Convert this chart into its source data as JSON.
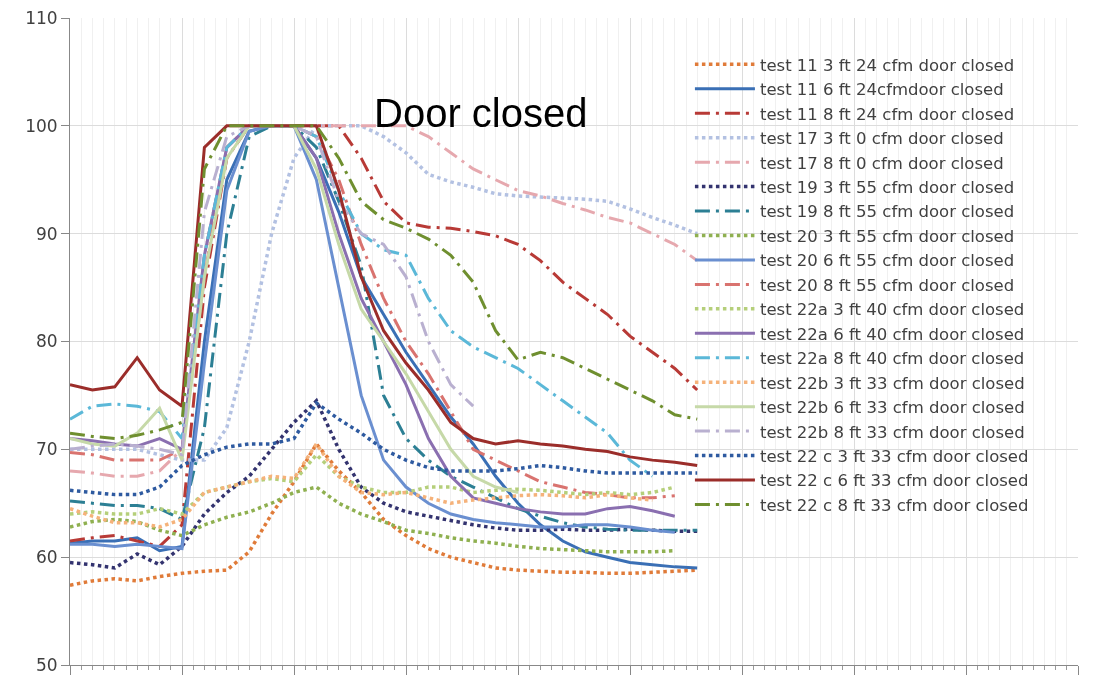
{
  "chart_data": {
    "type": "line",
    "annotations": [
      "Door closed"
    ],
    "categories": [
      null,
      null,
      null,
      null,
      null,
      null,
      null,
      null,
      null,
      null,
      null,
      null,
      null,
      null,
      null,
      null,
      null,
      null,
      null,
      null,
      null,
      null,
      null,
      null,
      null,
      null,
      null,
      null,
      null,
      null,
      null,
      null,
      null,
      null,
      null,
      null,
      null,
      null,
      null,
      null,
      null,
      null,
      null,
      null,
      null,
      null
    ],
    "ylim": [
      50,
      110
    ],
    "yticks": [
      50,
      60,
      70,
      80,
      90,
      100,
      110
    ],
    "grid": true,
    "legend": "top right",
    "marker": "none",
    "series": [
      {
        "name": "test 11 3 ft 24 cfm door closed",
        "color": "#e07b39",
        "line_style": "dotted",
        "values": [
          57.4,
          57.8,
          58,
          57.8,
          58.2,
          58.5,
          58.7,
          58.8,
          60.5,
          64,
          67,
          70.5,
          68,
          66,
          63.5,
          62,
          60.8,
          60,
          59.5,
          59,
          58.8,
          58.7,
          58.6,
          58.6,
          58.5,
          58.5,
          58.6,
          58.7,
          58.8,
          null,
          null,
          null,
          null,
          null,
          null,
          null,
          null,
          null,
          null,
          null,
          null,
          null,
          null,
          null,
          null,
          null
        ]
      },
      {
        "name": "test 11 6 ft 24cfmdoor closed",
        "color": "#3a6fb5",
        "line_style": "solid",
        "values": [
          61.3,
          61.5,
          61.5,
          61.8,
          60.6,
          61,
          80,
          95,
          99.5,
          100,
          100,
          97,
          92,
          86,
          82.5,
          79,
          76,
          73,
          70.5,
          67.5,
          65,
          63,
          61.5,
          60.5,
          60,
          59.5,
          59.3,
          59.1,
          59,
          null,
          null,
          null,
          null,
          null,
          null,
          null,
          null,
          null,
          null,
          null,
          null,
          null,
          null,
          null,
          null,
          null
        ]
      },
      {
        "name": "test 11 8 ft 24 cfm door closed",
        "color": "#b83a36",
        "line_style": "dashdot",
        "values": [
          61.5,
          61.8,
          62,
          61.5,
          61,
          63,
          85,
          97,
          100,
          100,
          100,
          100,
          100,
          97,
          93,
          91,
          90.6,
          90.5,
          90.2,
          89.8,
          89,
          87.5,
          85.5,
          84,
          82.5,
          80.5,
          79,
          77.5,
          75.5,
          null,
          null,
          null,
          null,
          null,
          null,
          null,
          null,
          null,
          null,
          null,
          null,
          null,
          null,
          null,
          null,
          null
        ]
      },
      {
        "name": "test 17 3 ft 0 cfm door closed",
        "color": "#b3c1e2",
        "line_style": "dotted",
        "values": [
          70,
          70,
          70,
          70,
          69.5,
          69,
          69,
          72,
          80,
          90,
          97,
          100,
          100,
          100,
          99,
          97.5,
          95.5,
          94.8,
          94.3,
          93.7,
          93.5,
          93.4,
          93.3,
          93.2,
          93,
          92.3,
          91.5,
          90.8,
          90,
          null,
          null,
          null,
          null,
          null,
          null,
          null,
          null,
          null,
          null,
          null,
          null,
          null,
          null,
          null,
          null,
          null
        ]
      },
      {
        "name": "test 17 8 ft 0 cfm door closed",
        "color": "#e6a8ae",
        "line_style": "dashdot",
        "values": [
          68,
          67.8,
          67.5,
          67.5,
          68,
          70,
          88,
          98,
          100,
          100,
          100,
          100,
          100,
          100,
          100,
          100,
          99,
          97.5,
          96,
          95,
          94,
          93.5,
          92.8,
          92.2,
          91.5,
          91,
          90,
          89,
          87.5,
          null,
          null,
          null,
          null,
          null,
          null,
          null,
          null,
          null,
          null,
          null,
          null,
          null,
          null,
          null,
          null,
          null
        ]
      },
      {
        "name": "test 19 3 ft 55 cfm door closed",
        "color": "#33336f",
        "line_style": "dotted",
        "values": [
          59.5,
          59.3,
          59,
          60.3,
          59.3,
          61,
          64,
          66,
          67.5,
          70,
          72.5,
          74.5,
          70,
          66.5,
          65,
          64.2,
          63.8,
          63.4,
          63,
          62.7,
          62.5,
          62.5,
          62.6,
          62.5,
          62.5,
          62.6,
          62.5,
          62.4,
          62.4,
          null,
          null,
          null,
          null,
          null,
          null,
          null,
          null,
          null,
          null,
          null,
          null,
          null,
          null,
          null,
          null,
          null
        ]
      },
      {
        "name": "test 19 8 ft 55 cfm door closed",
        "color": "#2c7f94",
        "line_style": "dashdot",
        "values": [
          65.2,
          65,
          64.8,
          64.8,
          64.5,
          63.5,
          72,
          90,
          99,
          100,
          100,
          98,
          93,
          87,
          75,
          71,
          69,
          67.5,
          66.5,
          65.5,
          64.5,
          63.8,
          63.2,
          62.8,
          62.6,
          62.5,
          62.5,
          62.5,
          62.5,
          null,
          null,
          null,
          null,
          null,
          null,
          null,
          null,
          null,
          null,
          null,
          null,
          null,
          null,
          null,
          null,
          null
        ]
      },
      {
        "name": "test 20 3 ft 55 cfm door closed",
        "color": "#8fb050",
        "line_style": "dotted",
        "values": [
          62.8,
          63.3,
          63.5,
          63.3,
          62.5,
          62,
          63,
          63.7,
          64.2,
          65,
          66,
          66.5,
          65,
          64,
          63.3,
          62.5,
          62.2,
          61.8,
          61.5,
          61.3,
          61,
          60.8,
          60.7,
          60.6,
          60.5,
          60.5,
          60.5,
          60.6,
          null,
          null,
          null,
          null,
          null,
          null,
          null,
          null,
          null,
          null,
          null,
          null,
          null,
          null,
          null,
          null,
          null,
          null
        ]
      },
      {
        "name": "test 20 6 ft 55 cfm door closed",
        "color": "#6a8fd0",
        "line_style": "solid",
        "values": [
          61.2,
          61.2,
          61,
          61.2,
          61,
          60.8,
          78,
          94,
          99.5,
          100,
          100,
          95,
          85,
          75,
          69,
          66.5,
          65,
          64,
          63.5,
          63.2,
          63,
          62.8,
          62.8,
          63,
          63,
          62.8,
          62.5,
          62.3,
          null,
          null,
          null,
          null,
          null,
          null,
          null,
          null,
          null,
          null,
          null,
          null,
          null,
          null,
          null,
          null,
          null,
          null
        ]
      },
      {
        "name": "test 20 8 ft 55 cfm door closed",
        "color": "#d9736f",
        "line_style": "dashdot",
        "values": [
          69.7,
          69.5,
          69,
          69,
          69,
          70,
          86,
          98,
          100,
          100,
          100,
          99,
          95,
          89,
          84,
          80,
          77,
          73.5,
          70,
          69,
          68,
          67,
          66.5,
          66,
          65.8,
          65.5,
          65.5,
          65.7,
          null,
          null,
          null,
          null,
          null,
          null,
          null,
          null,
          null,
          null,
          null,
          null,
          null,
          null,
          null,
          null,
          null,
          null
        ]
      },
      {
        "name": "test 22a 3 ft 40 cfm door closed",
        "color": "#b5cf7a",
        "line_style": "dotted",
        "values": [
          64,
          64.2,
          64,
          64,
          64.5,
          64,
          66,
          66.5,
          67,
          67.3,
          67,
          69.5,
          67.5,
          66.5,
          66,
          66,
          66.5,
          66.5,
          66,
          66.2,
          66.3,
          66.2,
          66,
          65.8,
          66,
          65.8,
          66,
          66.5,
          null,
          null,
          null,
          null,
          null,
          null,
          null,
          null,
          null,
          null,
          null,
          null,
          null,
          null,
          null,
          null,
          null,
          null
        ]
      },
      {
        "name": "test 22a 6 ft 40 cfm door closed",
        "color": "#8a6fb0",
        "line_style": "solid",
        "values": [
          71,
          70.8,
          70.5,
          70.3,
          71,
          70,
          88,
          98,
          100,
          100,
          100,
          97,
          90,
          84,
          80,
          76,
          71,
          67.5,
          65.5,
          65,
          64.5,
          64.2,
          64,
          64,
          64.5,
          64.7,
          64.3,
          63.8,
          null,
          null,
          null,
          null,
          null,
          null,
          null,
          null,
          null,
          null,
          null,
          null,
          null,
          null,
          null,
          null,
          null,
          null
        ]
      },
      {
        "name": "test 22a 8 ft 40 cfm door closed",
        "color": "#5bb8d8",
        "line_style": "dashdot",
        "values": [
          72.8,
          74,
          74.2,
          74,
          73.5,
          71,
          88,
          98,
          100,
          100,
          100,
          99,
          94,
          90,
          88.5,
          88,
          84,
          81,
          79.5,
          78.5,
          77.5,
          76,
          74.5,
          73,
          71.5,
          69,
          67.5,
          null,
          null,
          null,
          null,
          null,
          null,
          null,
          null,
          null,
          null,
          null,
          null,
          null,
          null,
          null,
          null,
          null,
          null,
          null
        ]
      },
      {
        "name": "test 22b 3 ft 33 cfm door closed",
        "color": "#f5b27a",
        "line_style": "dotted",
        "values": [
          64.5,
          63.8,
          63.2,
          63.2,
          62.8,
          63.5,
          66,
          66.5,
          67,
          67.5,
          67.3,
          70.5,
          67.5,
          66,
          65.8,
          66,
          65.5,
          65,
          65.3,
          65.5,
          65.7,
          65.8,
          65.7,
          65.5,
          65.8,
          65.5,
          65.3,
          null,
          null,
          null,
          null,
          null,
          null,
          null,
          null,
          null,
          null,
          null,
          null,
          null,
          null,
          null,
          null,
          null,
          null,
          null
        ]
      },
      {
        "name": "test 22b 6 ft 33 cfm door closed",
        "color": "#c6d9a8",
        "line_style": "solid",
        "values": [
          71,
          70.5,
          70.3,
          71.5,
          73.8,
          69,
          86,
          97,
          100,
          100,
          100,
          96,
          89,
          83,
          80,
          77,
          73.5,
          70,
          67.5,
          66.5,
          66,
          null,
          null,
          null,
          null,
          null,
          null,
          null,
          null,
          null,
          null,
          null,
          null,
          null,
          null,
          null,
          null,
          null,
          null,
          null,
          null,
          null,
          null,
          null,
          null,
          null
        ]
      },
      {
        "name": "test 22b 8 ft 33 cfm door closed",
        "color": "#b9b0d0",
        "line_style": "dashdot",
        "values": [
          70,
          70.3,
          70.5,
          70.3,
          70,
          69.5,
          92,
          99,
          100,
          100,
          100,
          99,
          93,
          90,
          89,
          86,
          80,
          76,
          74,
          null,
          null,
          null,
          null,
          null,
          null,
          null,
          null,
          null,
          null,
          null,
          null,
          null,
          null,
          null,
          null,
          null,
          null,
          null,
          null,
          null,
          null,
          null,
          null,
          null,
          null,
          null
        ]
      },
      {
        "name": "test 22 c 3 ft 33 cfm door closed",
        "color": "#2e5aa0",
        "line_style": "dotted",
        "values": [
          66.2,
          66,
          65.8,
          65.8,
          66.5,
          68.5,
          69.5,
          70.2,
          70.5,
          70.5,
          71,
          74.3,
          72.8,
          71.5,
          70,
          69,
          68.3,
          68,
          68,
          68,
          68.2,
          68.5,
          68.3,
          68,
          67.8,
          67.8,
          67.8,
          67.8,
          67.8,
          null,
          null,
          null,
          null,
          null,
          null,
          null,
          null,
          null,
          null,
          null,
          null,
          null,
          null,
          null,
          null,
          null
        ]
      },
      {
        "name": "test 22 c 6 ft 33 cfm door closed",
        "color": "#9b2d2a",
        "line_style": "solid",
        "values": [
          76,
          75.5,
          75.8,
          78.5,
          75.5,
          74,
          98,
          100,
          100,
          100,
          100,
          100,
          94,
          86,
          81,
          78,
          75.5,
          72.5,
          71,
          70.5,
          70.8,
          70.5,
          70.3,
          70,
          69.8,
          69.3,
          69,
          68.8,
          68.5,
          null,
          null,
          null,
          null,
          null,
          null,
          null,
          null,
          null,
          null,
          null,
          null,
          null,
          null,
          null,
          null,
          null
        ]
      },
      {
        "name": "test 22 c 8 ft 33 cfm door closed",
        "color": "#6f8f2f",
        "line_style": "dashdot",
        "values": [
          71.5,
          71.2,
          71,
          71.3,
          71.8,
          72.5,
          96,
          100,
          100,
          100,
          100,
          100,
          97,
          93,
          91.3,
          90.5,
          89.5,
          88,
          85.5,
          81,
          78.3,
          79,
          78.5,
          77.5,
          76.5,
          75.5,
          74.5,
          73.2,
          72.8,
          null,
          null,
          null,
          null,
          null,
          null,
          null,
          null,
          null,
          null,
          null,
          null,
          null,
          null,
          null,
          null,
          null
        ]
      }
    ]
  }
}
